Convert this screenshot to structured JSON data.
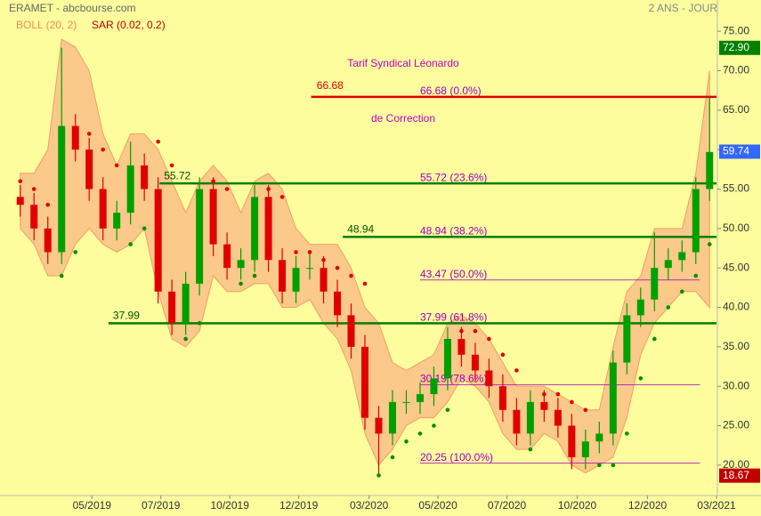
{
  "chart_data": {
    "type": "candlestick",
    "header": "ERAMET - abcbourse.com",
    "period": "2 ANS - JOUR",
    "indicators": [
      {
        "name": "BOLL (20, 2)",
        "color": "#f08c5a"
      },
      {
        "name": "SAR (0.02, 0.2)",
        "color": "#c00000"
      }
    ],
    "title": [
      "Tarif Syndical Léonardo",
      "de Correction"
    ],
    "title_color": "#c000c0",
    "up_color": "#00a000",
    "down_color": "#e00000",
    "band_color": "#fbc98a",
    "sar_up_color": "#009000",
    "sar_down_color": "#e00000",
    "xlim": [
      0,
      51
    ],
    "xticks": [
      {
        "value": 5.7,
        "label": "05/2019"
      },
      {
        "value": 10.7,
        "label": "07/2019"
      },
      {
        "value": 15.7,
        "label": "10/2019"
      },
      {
        "value": 20.7,
        "label": "12/2019"
      },
      {
        "value": 25.8,
        "label": "03/2020"
      },
      {
        "value": 30.8,
        "label": "05/2020"
      },
      {
        "value": 35.8,
        "label": "07/2020"
      },
      {
        "value": 40.9,
        "label": "10/2020"
      },
      {
        "value": 46,
        "label": "12/2020"
      },
      {
        "value": 51,
        "label": "03/2021"
      }
    ],
    "ylim": [
      17.5,
      77.5
    ],
    "yticks": [
      {
        "value": 20,
        "label": "20.00"
      },
      {
        "value": 25,
        "label": "25.00"
      },
      {
        "value": 30,
        "label": "30.00"
      },
      {
        "value": 35,
        "label": "35.00"
      },
      {
        "value": 40,
        "label": "40.00"
      },
      {
        "value": 45,
        "label": "45.00"
      },
      {
        "value": 50,
        "label": "50.00"
      },
      {
        "value": 55,
        "label": "55.00"
      },
      {
        "value": 60,
        "label": "60.00"
      },
      {
        "value": 65,
        "label": "65.00"
      },
      {
        "value": 70,
        "label": "70.00"
      },
      {
        "value": 75,
        "label": "75.00"
      }
    ],
    "open": [
      54,
      53,
      50,
      47,
      63,
      60,
      55,
      50,
      52,
      58,
      55,
      42,
      38,
      43,
      55,
      48,
      45,
      46,
      54,
      46,
      42,
      45,
      45,
      42,
      39,
      35,
      26,
      24,
      28,
      28,
      29,
      31,
      36,
      34,
      32,
      30,
      27,
      24,
      28,
      27,
      25,
      21,
      23,
      24,
      33,
      39,
      41,
      45,
      46,
      47,
      55
    ],
    "high": [
      55.5,
      54.5,
      51.5,
      72.9,
      64.5,
      61.5,
      56.5,
      53.5,
      61,
      59.5,
      56.5,
      43.5,
      44.5,
      56.5,
      56.5,
      49.5,
      47.5,
      55.5,
      55.5,
      47.5,
      46.5,
      47,
      46.5,
      43.5,
      40.5,
      36.5,
      27.5,
      29.5,
      29.5,
      30.5,
      32.5,
      37.5,
      37.5,
      35.5,
      33.5,
      31.5,
      28.5,
      29.5,
      29.5,
      28.5,
      26.5,
      24.5,
      25.5,
      34.5,
      40.5,
      42.5,
      49.5,
      47.5,
      48.5,
      56.5,
      66.7
    ],
    "low": [
      51.5,
      48.5,
      45.5,
      45.5,
      58.5,
      53.5,
      48.5,
      48.5,
      50.5,
      53.5,
      40.5,
      36.5,
      36.5,
      41.5,
      46.5,
      43.5,
      43.5,
      44.5,
      44.5,
      40.5,
      40.5,
      43.5,
      40.5,
      37.5,
      33.5,
      24.5,
      18.7,
      22.5,
      26.5,
      26.5,
      27.5,
      29.5,
      32.5,
      30.5,
      28.5,
      25.5,
      22.5,
      22.5,
      25.5,
      23.5,
      19.5,
      19.5,
      21.5,
      22.5,
      31.5,
      37.5,
      39.5,
      43.5,
      44.5,
      45.5,
      53.5
    ],
    "close": [
      53,
      50,
      47,
      63,
      60,
      55,
      50,
      52,
      58,
      55,
      42,
      38,
      43,
      55,
      48,
      45,
      46,
      54,
      46,
      42,
      45,
      45,
      42,
      39,
      35,
      26,
      24,
      28,
      28,
      29,
      31,
      36,
      34,
      32,
      30,
      27,
      24,
      28,
      27,
      25,
      21,
      23,
      24,
      33,
      39,
      41,
      45,
      46,
      47,
      55,
      59.7
    ],
    "boll_upper": [
      57,
      57,
      60,
      74,
      73,
      70,
      62,
      58,
      62,
      62,
      60,
      56,
      52,
      56,
      58,
      56,
      52,
      56,
      57,
      55,
      50,
      48,
      48,
      48,
      45,
      40,
      38,
      33,
      32,
      33,
      34,
      38,
      39,
      38,
      36,
      33,
      30,
      30,
      30,
      29,
      28,
      27,
      27,
      35,
      42,
      44,
      50,
      50,
      50,
      57,
      70
    ],
    "boll_lower": [
      50,
      48,
      44,
      44,
      48,
      50,
      48,
      47,
      48,
      50,
      42,
      36,
      35,
      37,
      44,
      42,
      42,
      43,
      43,
      40,
      40,
      41,
      38,
      36,
      32,
      24,
      20,
      22,
      25,
      26,
      26,
      28,
      31,
      30,
      28,
      24,
      22,
      22,
      24,
      23,
      20,
      19,
      20,
      21,
      26,
      34,
      38,
      40,
      42,
      42,
      40
    ],
    "sar": [
      56,
      55,
      53,
      44,
      47,
      62,
      60,
      58,
      48,
      50,
      61,
      58,
      36,
      38,
      56,
      55,
      43,
      44,
      55,
      54,
      47,
      47,
      46,
      45,
      44,
      43,
      18.7,
      21,
      23,
      24,
      25,
      27,
      37,
      37,
      36,
      34,
      32,
      22,
      29,
      29,
      28,
      27,
      20,
      20,
      24,
      31,
      36,
      40,
      42,
      44,
      48
    ],
    "support_lines": [
      {
        "value": 55.72,
        "label": "55.72"
      },
      {
        "value": 48.94,
        "label": "48.94"
      },
      {
        "value": 37.99,
        "label": "37.99"
      }
    ],
    "support_color": "#008000",
    "top_line": {
      "value": 66.68,
      "label": "66.68",
      "color": "#e00000"
    },
    "fib_levels": [
      {
        "value": 66.68,
        "label": "66.68  (0.0%)"
      },
      {
        "value": 55.72,
        "label": "55.72  (23.6%)"
      },
      {
        "value": 48.94,
        "label": "48.94  (38.2%)"
      },
      {
        "value": 43.47,
        "label": "43.47  (50.0%)"
      },
      {
        "value": 37.99,
        "label": "37.99  (61.8%)"
      },
      {
        "value": 30.19,
        "label": "30.19  (78.6%)"
      },
      {
        "value": 20.25,
        "label": "20.25  (100.0%)"
      }
    ],
    "fib_color": "#a000c0",
    "flags": [
      {
        "value": 72.9,
        "label": "72.90",
        "color": "#008000"
      },
      {
        "value": 59.74,
        "label": "59.74",
        "color": "#3366ff"
      },
      {
        "value": 18.67,
        "label": "18.67",
        "color": "#c00000"
      }
    ]
  }
}
